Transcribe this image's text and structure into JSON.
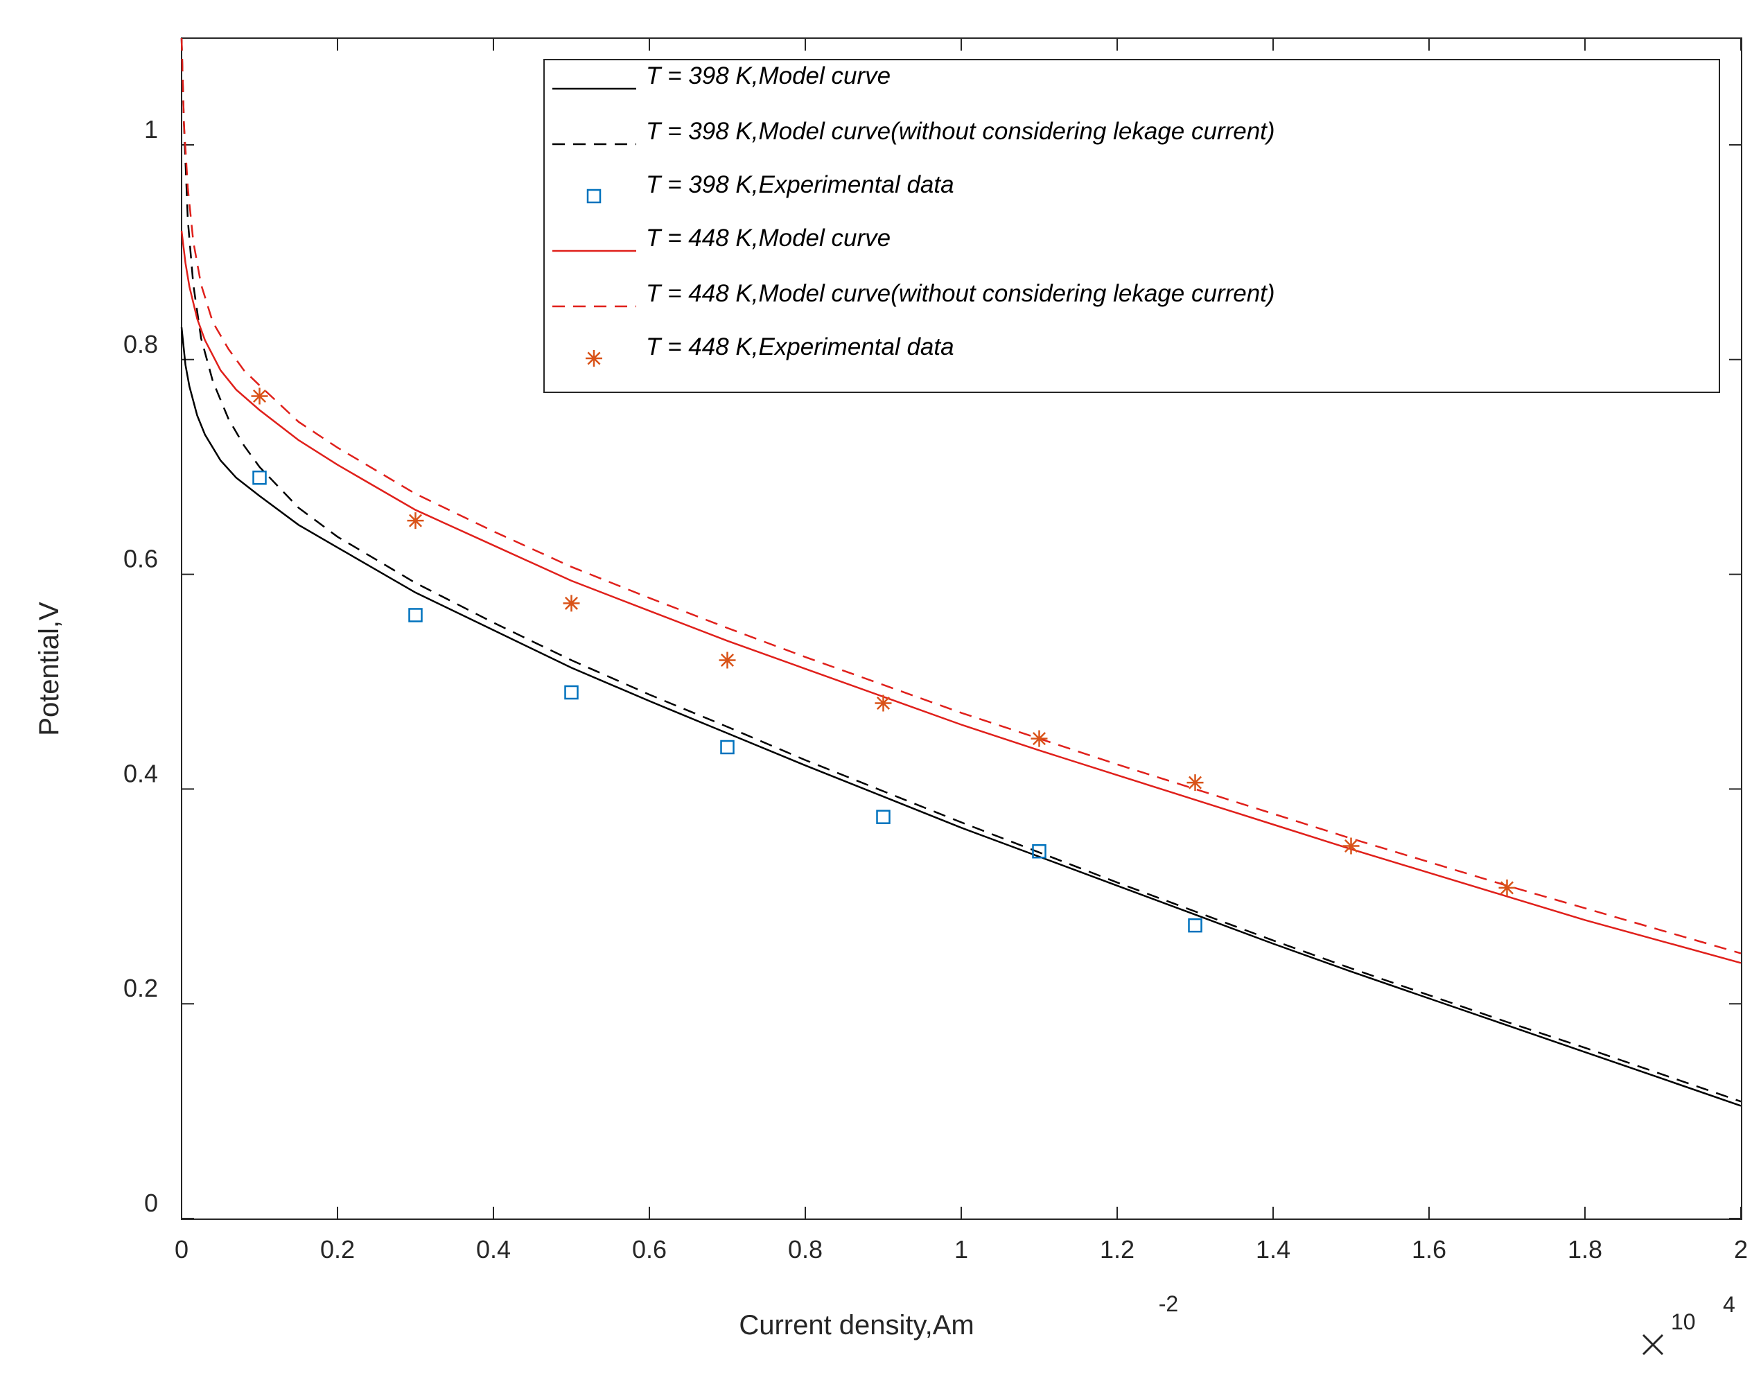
{
  "chart_data": {
    "type": "line",
    "title": "",
    "xlabel": "Current density,Am",
    "xlabel_superscript": "-2",
    "x_exponent_base": "10",
    "x_exponent_power": "4",
    "ylabel": "Potential,V",
    "xlim": [
      0,
      2
    ],
    "ylim": [
      0,
      1.1
    ],
    "x_ticks": [
      0,
      0.2,
      0.4,
      0.6,
      0.8,
      1,
      1.2,
      1.4,
      1.6,
      1.8,
      2
    ],
    "x_tick_labels": [
      "0",
      "0.2",
      "0.4",
      "0.6",
      "0.8",
      "1",
      "1.2",
      "1.4",
      "1.6",
      "1.8",
      "2"
    ],
    "y_ticks": [
      0,
      0.2,
      0.4,
      0.6,
      0.8,
      1
    ],
    "y_tick_labels": [
      "0",
      "0.2",
      "0.4",
      "0.6",
      "0.8",
      "1"
    ],
    "grid": false,
    "legend_position": "top-right",
    "series": [
      {
        "name": "T = 398 K,Model curve",
        "kind": "line",
        "style": "solid",
        "color": "#000000",
        "x": [
          0,
          0.005,
          0.01,
          0.02,
          0.03,
          0.05,
          0.07,
          0.1,
          0.15,
          0.2,
          0.3,
          0.4,
          0.5,
          0.6,
          0.7,
          0.8,
          0.9,
          1.0,
          1.1,
          1.2,
          1.3,
          1.4,
          1.5,
          1.6,
          1.7,
          1.8,
          1.9,
          2.0
        ],
        "y": [
          0.83,
          0.795,
          0.775,
          0.748,
          0.73,
          0.706,
          0.69,
          0.673,
          0.646,
          0.625,
          0.583,
          0.548,
          0.513,
          0.482,
          0.452,
          0.422,
          0.393,
          0.364,
          0.337,
          0.31,
          0.283,
          0.256,
          0.23,
          0.205,
          0.18,
          0.155,
          0.13,
          0.105
        ]
      },
      {
        "name": "T = 398 K,Model curve(without considering lekage current)",
        "kind": "line",
        "style": "dashed",
        "color": "#000000",
        "x": [
          0.0,
          0.003,
          0.008,
          0.015,
          0.025,
          0.04,
          0.06,
          0.08,
          0.1,
          0.15,
          0.2,
          0.3,
          0.4,
          0.5,
          0.6,
          0.7,
          0.8,
          0.9,
          1.0,
          1.1,
          1.2,
          1.3,
          1.4,
          1.5,
          1.6,
          1.7,
          1.8,
          1.9,
          2.0
        ],
        "y": [
          1.1,
          1.02,
          0.93,
          0.87,
          0.82,
          0.78,
          0.745,
          0.72,
          0.7,
          0.662,
          0.635,
          0.592,
          0.555,
          0.52,
          0.488,
          0.458,
          0.427,
          0.398,
          0.369,
          0.341,
          0.313,
          0.286,
          0.259,
          0.233,
          0.208,
          0.183,
          0.159,
          0.134,
          0.109
        ]
      },
      {
        "name": "T = 398 K,Experimental data",
        "kind": "scatter",
        "marker": "square",
        "color": "#0072BD",
        "x": [
          0.1,
          0.3,
          0.5,
          0.7,
          0.9,
          1.1,
          1.3
        ],
        "y": [
          0.69,
          0.562,
          0.49,
          0.439,
          0.374,
          0.342,
          0.273
        ]
      },
      {
        "name": "T = 448 K,Model curve",
        "kind": "line",
        "style": "solid",
        "color": "#E0201B",
        "x": [
          0,
          0.005,
          0.01,
          0.02,
          0.03,
          0.05,
          0.07,
          0.1,
          0.15,
          0.2,
          0.3,
          0.4,
          0.5,
          0.6,
          0.7,
          0.8,
          0.9,
          1.0,
          1.1,
          1.2,
          1.3,
          1.4,
          1.5,
          1.6,
          1.7,
          1.8,
          1.9,
          2.0
        ],
        "y": [
          0.92,
          0.89,
          0.868,
          0.838,
          0.818,
          0.79,
          0.772,
          0.753,
          0.725,
          0.702,
          0.66,
          0.627,
          0.594,
          0.566,
          0.538,
          0.512,
          0.486,
          0.46,
          0.436,
          0.413,
          0.39,
          0.367,
          0.344,
          0.322,
          0.3,
          0.278,
          0.258,
          0.238
        ]
      },
      {
        "name": "T = 448 K,Model curve(without considering lekage current)",
        "kind": "line",
        "style": "dashed",
        "color": "#E0201B",
        "x": [
          0.0,
          0.003,
          0.008,
          0.015,
          0.025,
          0.04,
          0.06,
          0.08,
          0.1,
          0.15,
          0.2,
          0.3,
          0.4,
          0.5,
          0.6,
          0.7,
          0.8,
          0.9,
          1.0,
          1.1,
          1.2,
          1.3,
          1.4,
          1.5,
          1.6,
          1.7,
          1.8,
          1.9,
          2.0
        ],
        "y": [
          1.1,
          1.02,
          0.96,
          0.91,
          0.87,
          0.835,
          0.81,
          0.79,
          0.776,
          0.742,
          0.718,
          0.675,
          0.64,
          0.607,
          0.578,
          0.55,
          0.523,
          0.497,
          0.471,
          0.447,
          0.423,
          0.4,
          0.377,
          0.354,
          0.332,
          0.31,
          0.289,
          0.268,
          0.247
        ]
      },
      {
        "name": "T = 448 K,Experimental data",
        "kind": "scatter",
        "marker": "asterisk",
        "color": "#D95319",
        "x": [
          0.1,
          0.3,
          0.5,
          0.7,
          0.9,
          1.1,
          1.3,
          1.5,
          1.7
        ],
        "y": [
          0.766,
          0.65,
          0.573,
          0.52,
          0.48,
          0.447,
          0.406,
          0.347,
          0.308
        ]
      }
    ]
  }
}
